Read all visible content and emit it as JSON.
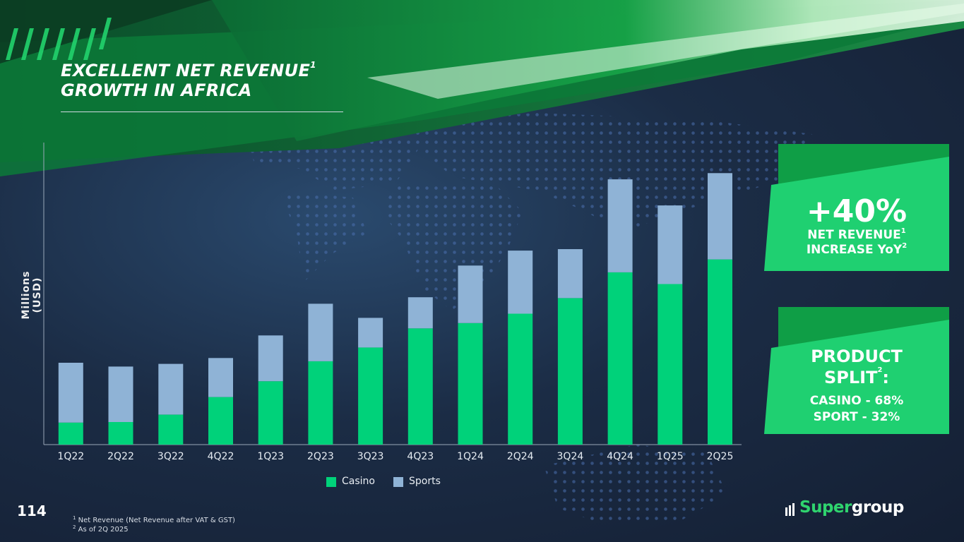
{
  "title": {
    "line1": "EXCELLENT NET REVENUE",
    "sup": "1",
    "line2": "GROWTH IN AFRICA"
  },
  "colors": {
    "casino": "#00d27a",
    "sports": "#8fb3d6",
    "accent": "#1fd071",
    "accent_dark": "#0f9e46"
  },
  "chart_data": {
    "type": "bar",
    "stacked": true,
    "categories": [
      "1Q22",
      "2Q22",
      "3Q22",
      "4Q22",
      "1Q23",
      "2Q23",
      "3Q23",
      "4Q23",
      "1Q24",
      "2Q24",
      "3Q24",
      "4Q24",
      "1Q25",
      "2Q25"
    ],
    "series": [
      {
        "name": "Casino",
        "values": [
          7.5,
          7.7,
          10.2,
          16.2,
          21.6,
          28.4,
          33.1,
          39.6,
          41.4,
          44.6,
          49.9,
          58.7,
          54.7,
          63.1
        ]
      },
      {
        "name": "Sports",
        "values": [
          20.4,
          18.9,
          17.3,
          13.3,
          15.6,
          19.6,
          10.1,
          10.6,
          19.6,
          21.5,
          16.7,
          31.7,
          26.8,
          29.4
        ]
      }
    ],
    "ylabel": "Millions (USD)",
    "xlabel": "",
    "ylim": [
      0,
      101
    ],
    "legend_position": "bottom",
    "grid": false
  },
  "kpi1": {
    "big": "+40%",
    "line1": "NET REVENUE",
    "line1_sup": "1",
    "line2": "INCREASE YoY",
    "line2_sup": "2"
  },
  "kpi2": {
    "line1": "PRODUCT",
    "line2": "SPLIT",
    "line2_sup": "2",
    "line2_suffix": ":",
    "line3": "CASINO - 68%",
    "line4": "SPORT - 32%"
  },
  "page_number": "114",
  "footnotes": [
    {
      "num": "1",
      "text": "Net Revenue (Net Revenue after VAT & GST)"
    },
    {
      "num": "2",
      "text": "As of 2Q 2025"
    }
  ],
  "logo": {
    "part1": "Super",
    "part2": "group"
  }
}
